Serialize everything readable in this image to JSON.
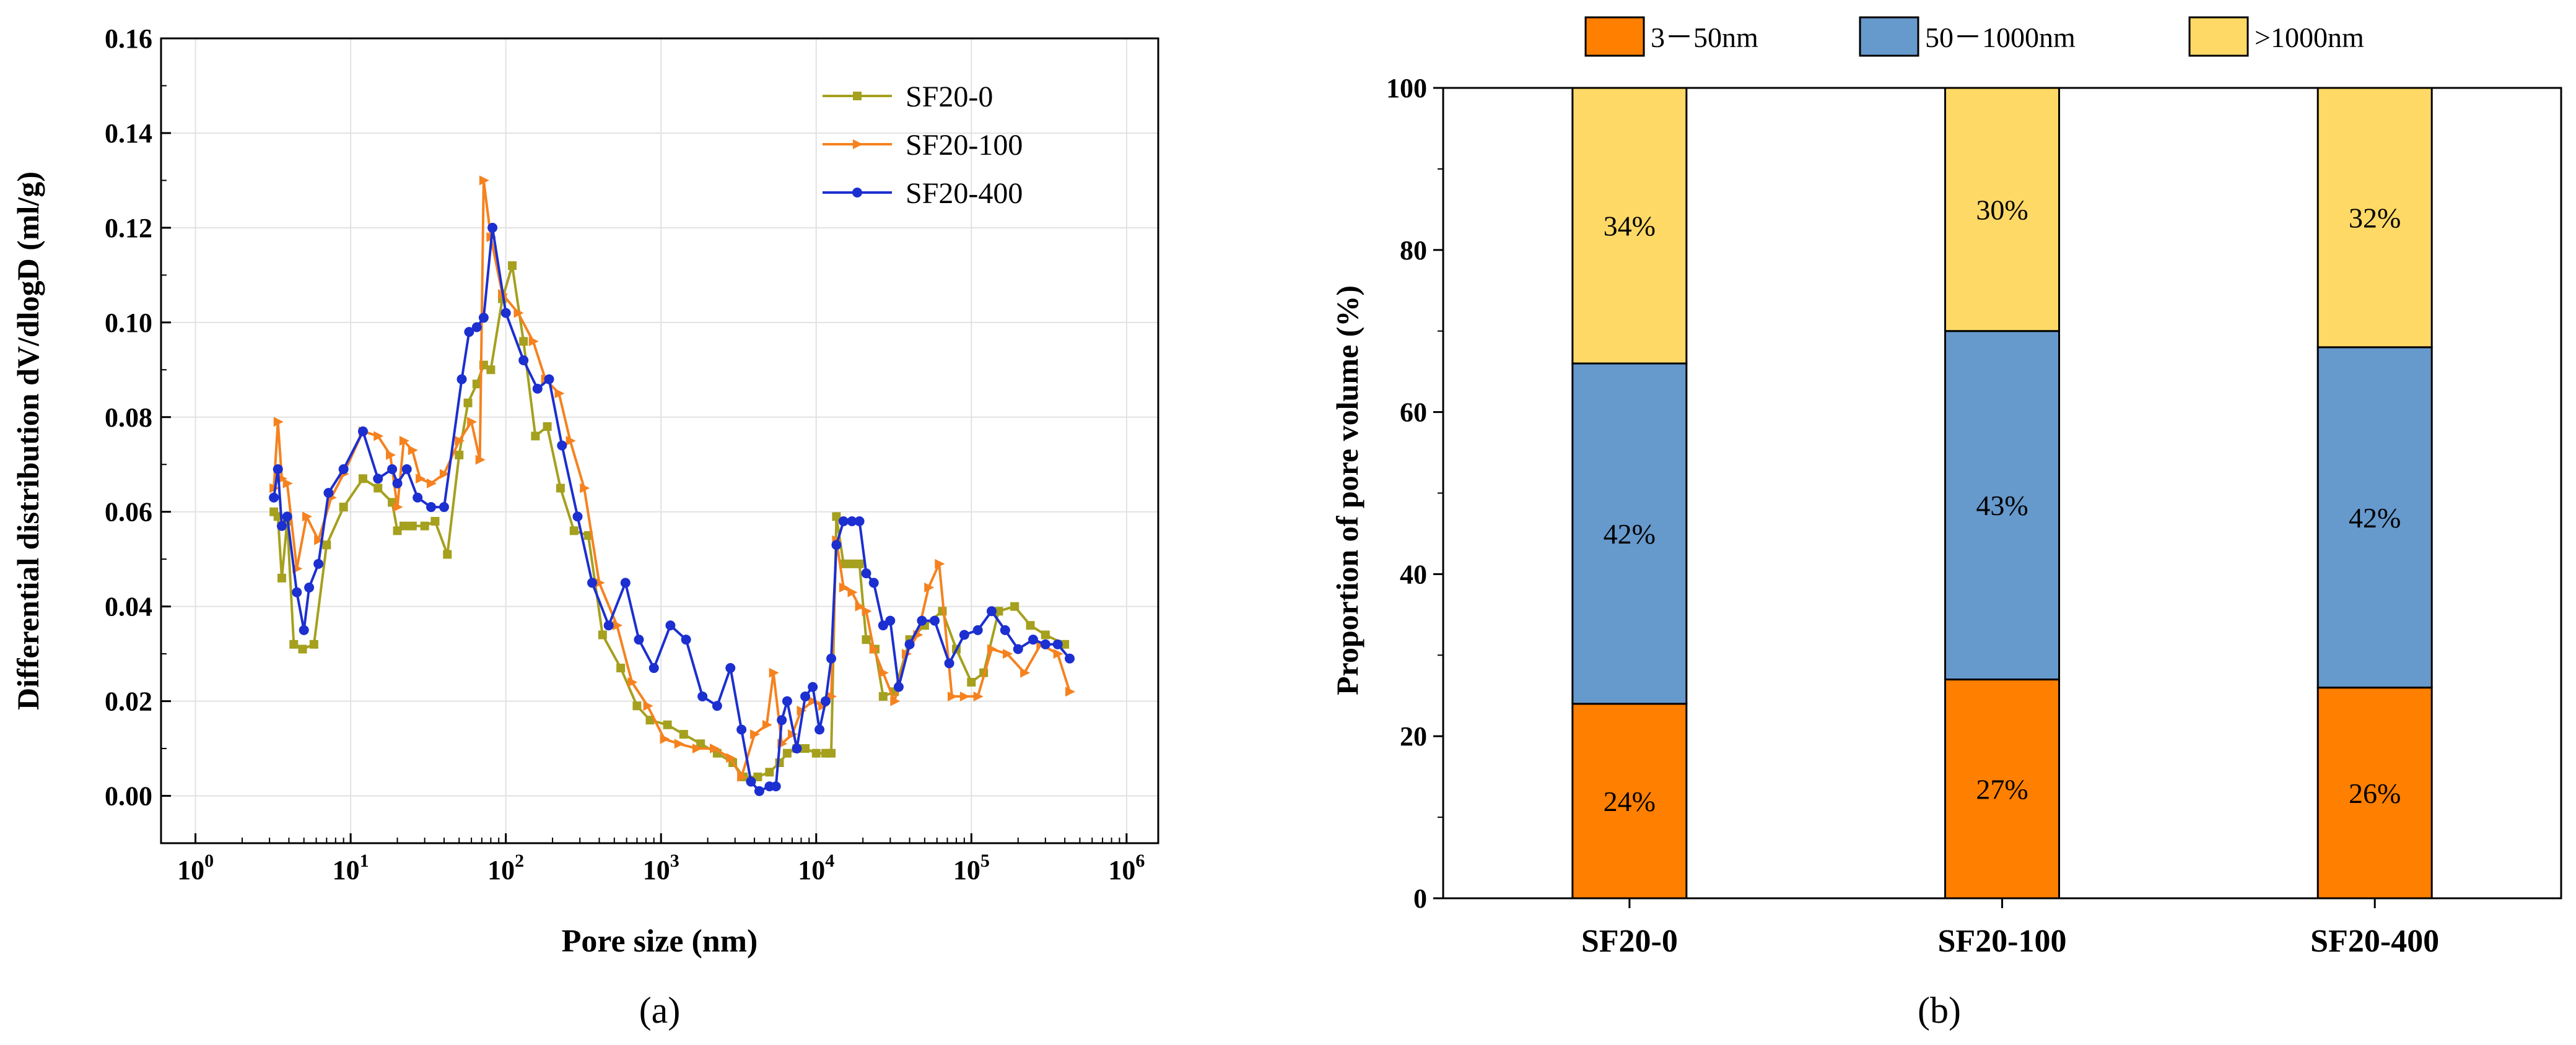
{
  "chart_data": [
    {
      "type": "line",
      "panel_label": "(a)",
      "xlabel": "Pore size (nm)",
      "ylabel": "Differential distribution dV/dlogD (ml/g)",
      "xscale": "log",
      "xlim": [
        0.6,
        1600000
      ],
      "ylim": [
        -0.01,
        0.16
      ],
      "yticks": [
        0.0,
        0.02,
        0.04,
        0.06,
        0.08,
        0.1,
        0.12,
        0.14,
        0.16
      ],
      "ytick_labels": [
        "0.00",
        "0.02",
        "0.04",
        "0.06",
        "0.08",
        "0.10",
        "0.12",
        "0.14",
        "0.16"
      ],
      "xticks": [
        {
          "base": "10",
          "exp": "0"
        },
        {
          "base": "10",
          "exp": "1"
        },
        {
          "base": "10",
          "exp": "2"
        },
        {
          "base": "10",
          "exp": "3"
        },
        {
          "base": "10",
          "exp": "4"
        },
        {
          "base": "10",
          "exp": "5"
        },
        {
          "base": "10",
          "exp": "6"
        }
      ],
      "grid": true,
      "legend_position": "top-right",
      "series": [
        {
          "name": "SF20-0",
          "color": "#a5a01e",
          "marker": "square",
          "points": [
            [
              3.2,
              0.06
            ],
            [
              3.4,
              0.059
            ],
            [
              3.6,
              0.046
            ],
            [
              3.9,
              0.058
            ],
            [
              4.3,
              0.032
            ],
            [
              4.9,
              0.031
            ],
            [
              5.8,
              0.032
            ],
            [
              7.0,
              0.053
            ],
            [
              9.0,
              0.061
            ],
            [
              12.0,
              0.067
            ],
            [
              15.0,
              0.065
            ],
            [
              18.5,
              0.062
            ],
            [
              20.0,
              0.056
            ],
            [
              22.0,
              0.057
            ],
            [
              25.0,
              0.057
            ],
            [
              30.0,
              0.057
            ],
            [
              35.0,
              0.058
            ],
            [
              42.0,
              0.051
            ],
            [
              50.0,
              0.072
            ],
            [
              57.0,
              0.083
            ],
            [
              65.0,
              0.087
            ],
            [
              72.0,
              0.091
            ],
            [
              80.0,
              0.09
            ],
            [
              95.0,
              0.105
            ],
            [
              110.0,
              0.112
            ],
            [
              130.0,
              0.096
            ],
            [
              155.0,
              0.076
            ],
            [
              185.0,
              0.078
            ],
            [
              225.0,
              0.065
            ],
            [
              275.0,
              0.056
            ],
            [
              340.0,
              0.055
            ],
            [
              420.0,
              0.034
            ],
            [
              550.0,
              0.027
            ],
            [
              700.0,
              0.019
            ],
            [
              850.0,
              0.016
            ],
            [
              1100.0,
              0.015
            ],
            [
              1400.0,
              0.013
            ],
            [
              1800.0,
              0.011
            ],
            [
              2300.0,
              0.009
            ],
            [
              2900.0,
              0.007
            ],
            [
              3400.0,
              0.004
            ],
            [
              4200.0,
              0.004
            ],
            [
              5000.0,
              0.005
            ],
            [
              5800.0,
              0.007
            ],
            [
              6500.0,
              0.009
            ],
            [
              7500.0,
              0.01
            ],
            [
              8500.0,
              0.01
            ],
            [
              10000.0,
              0.009
            ],
            [
              11500.0,
              0.009
            ],
            [
              12500.0,
              0.009
            ],
            [
              13500.0,
              0.059
            ],
            [
              15000.0,
              0.049
            ],
            [
              17000.0,
              0.049
            ],
            [
              19000.0,
              0.049
            ],
            [
              21000.0,
              0.033
            ],
            [
              24000.0,
              0.031
            ],
            [
              27000.0,
              0.021
            ],
            [
              32000.0,
              0.022
            ],
            [
              40000.0,
              0.033
            ],
            [
              50000.0,
              0.036
            ],
            [
              65000.0,
              0.039
            ],
            [
              80000.0,
              0.031
            ],
            [
              100000.0,
              0.024
            ],
            [
              120000.0,
              0.026
            ],
            [
              150000.0,
              0.039
            ],
            [
              190000.0,
              0.04
            ],
            [
              240000.0,
              0.036
            ],
            [
              300000.0,
              0.034
            ],
            [
              400000.0,
              0.032
            ]
          ]
        },
        {
          "name": "SF20-100",
          "color": "#f5821f",
          "marker": "triangle-right",
          "points": [
            [
              3.2,
              0.065
            ],
            [
              3.4,
              0.079
            ],
            [
              3.6,
              0.067
            ],
            [
              3.9,
              0.066
            ],
            [
              4.5,
              0.048
            ],
            [
              5.2,
              0.059
            ],
            [
              6.2,
              0.054
            ],
            [
              7.5,
              0.063
            ],
            [
              9.0,
              0.068
            ],
            [
              12.0,
              0.077
            ],
            [
              15.0,
              0.076
            ],
            [
              18.0,
              0.072
            ],
            [
              20.0,
              0.061
            ],
            [
              22.0,
              0.075
            ],
            [
              25.0,
              0.073
            ],
            [
              28.0,
              0.067
            ],
            [
              33.0,
              0.066
            ],
            [
              40.0,
              0.068
            ],
            [
              50.0,
              0.075
            ],
            [
              60.0,
              0.079
            ],
            [
              68.0,
              0.071
            ],
            [
              72.0,
              0.13
            ],
            [
              80.0,
              0.118
            ],
            [
              95.0,
              0.106
            ],
            [
              120.0,
              0.102
            ],
            [
              150.0,
              0.096
            ],
            [
              180.0,
              0.088
            ],
            [
              220.0,
              0.085
            ],
            [
              260.0,
              0.075
            ],
            [
              320.0,
              0.065
            ],
            [
              400.0,
              0.045
            ],
            [
              520.0,
              0.036
            ],
            [
              650.0,
              0.024
            ],
            [
              820.0,
              0.019
            ],
            [
              1050.0,
              0.012
            ],
            [
              1300.0,
              0.011
            ],
            [
              1700.0,
              0.01
            ],
            [
              2200.0,
              0.01
            ],
            [
              2800.0,
              0.008
            ],
            [
              3300.0,
              0.004
            ],
            [
              4000.0,
              0.013
            ],
            [
              4800.0,
              0.015
            ],
            [
              5300.0,
              0.026
            ],
            [
              6000.0,
              0.011
            ],
            [
              7000.0,
              0.013
            ],
            [
              8000.0,
              0.018
            ],
            [
              9500.0,
              0.02
            ],
            [
              11000.0,
              0.019
            ],
            [
              12500.0,
              0.021
            ],
            [
              13500.0,
              0.054
            ],
            [
              15000.0,
              0.044
            ],
            [
              17000.0,
              0.043
            ],
            [
              19000.0,
              0.04
            ],
            [
              21000.0,
              0.039
            ],
            [
              23500.0,
              0.031
            ],
            [
              27000.0,
              0.026
            ],
            [
              32000.0,
              0.02
            ],
            [
              38000.0,
              0.03
            ],
            [
              45000.0,
              0.034
            ],
            [
              53000.0,
              0.044
            ],
            [
              62000.0,
              0.049
            ],
            [
              75000.0,
              0.021
            ],
            [
              90000.0,
              0.021
            ],
            [
              110000.0,
              0.021
            ],
            [
              135000.0,
              0.031
            ],
            [
              170000.0,
              0.03
            ],
            [
              220000.0,
              0.026
            ],
            [
              280000.0,
              0.032
            ],
            [
              360000.0,
              0.03
            ],
            [
              430000.0,
              0.022
            ]
          ]
        },
        {
          "name": "SF20-400",
          "color": "#1c2fd0",
          "marker": "circle",
          "points": [
            [
              3.2,
              0.063
            ],
            [
              3.4,
              0.069
            ],
            [
              3.6,
              0.057
            ],
            [
              3.9,
              0.059
            ],
            [
              4.5,
              0.043
            ],
            [
              5.0,
              0.035
            ],
            [
              5.4,
              0.044
            ],
            [
              6.2,
              0.049
            ],
            [
              7.2,
              0.064
            ],
            [
              9.0,
              0.069
            ],
            [
              12.0,
              0.077
            ],
            [
              15.0,
              0.067
            ],
            [
              18.5,
              0.069
            ],
            [
              20.0,
              0.066
            ],
            [
              23.0,
              0.069
            ],
            [
              27.0,
              0.063
            ],
            [
              33.0,
              0.061
            ],
            [
              40.0,
              0.061
            ],
            [
              52.0,
              0.088
            ],
            [
              58.0,
              0.098
            ],
            [
              65.0,
              0.099
            ],
            [
              72.0,
              0.101
            ],
            [
              82.0,
              0.12
            ],
            [
              100.0,
              0.102
            ],
            [
              130.0,
              0.092
            ],
            [
              160.0,
              0.086
            ],
            [
              190.0,
              0.088
            ],
            [
              230.0,
              0.074
            ],
            [
              290.0,
              0.059
            ],
            [
              360.0,
              0.045
            ],
            [
              460.0,
              0.036
            ],
            [
              590.0,
              0.045
            ],
            [
              720.0,
              0.033
            ],
            [
              900.0,
              0.027
            ],
            [
              1150.0,
              0.036
            ],
            [
              1450.0,
              0.033
            ],
            [
              1850.0,
              0.021
            ],
            [
              2300.0,
              0.019
            ],
            [
              2800.0,
              0.027
            ],
            [
              3300.0,
              0.014
            ],
            [
              3800.0,
              0.003
            ],
            [
              4300.0,
              0.001
            ],
            [
              5000.0,
              0.002
            ],
            [
              5500.0,
              0.002
            ],
            [
              6000.0,
              0.016
            ],
            [
              6500.0,
              0.02
            ],
            [
              7500.0,
              0.01
            ],
            [
              8500.0,
              0.021
            ],
            [
              9500.0,
              0.023
            ],
            [
              10500.0,
              0.014
            ],
            [
              11500.0,
              0.02
            ],
            [
              12500.0,
              0.029
            ],
            [
              13500.0,
              0.053
            ],
            [
              15000.0,
              0.058
            ],
            [
              17000.0,
              0.058
            ],
            [
              19000.0,
              0.058
            ],
            [
              21000.0,
              0.047
            ],
            [
              23500.0,
              0.045
            ],
            [
              27000.0,
              0.036
            ],
            [
              30000.0,
              0.037
            ],
            [
              34000.0,
              0.023
            ],
            [
              40000.0,
              0.032
            ],
            [
              48000.0,
              0.037
            ],
            [
              58000.0,
              0.037
            ],
            [
              72000.0,
              0.028
            ],
            [
              90000.0,
              0.034
            ],
            [
              110000.0,
              0.035
            ],
            [
              135000.0,
              0.039
            ],
            [
              165000.0,
              0.035
            ],
            [
              200000.0,
              0.031
            ],
            [
              250000.0,
              0.033
            ],
            [
              300000.0,
              0.032
            ],
            [
              360000.0,
              0.032
            ],
            [
              430000.0,
              0.029
            ]
          ]
        }
      ]
    },
    {
      "type": "bar",
      "stacked": true,
      "panel_label": "(b)",
      "xlabel": "",
      "ylabel": "Proportion of pore volume (%)",
      "ylim": [
        0,
        100
      ],
      "yticks": [
        0,
        20,
        40,
        60,
        80,
        100
      ],
      "ytick_labels": [
        "0",
        "20",
        "40",
        "60",
        "80",
        "100"
      ],
      "categories": [
        "SF20-0",
        "SF20-100",
        "SF20-400"
      ],
      "legend_position": "top",
      "series": [
        {
          "name": "3－50nm",
          "color": "#ff7f00",
          "values": [
            24,
            27,
            26
          ],
          "labels": [
            "24%",
            "27%",
            "26%"
          ]
        },
        {
          "name": "50－1000nm",
          "color": "#6699cc",
          "values": [
            42,
            43,
            42
          ],
          "labels": [
            "42%",
            "43%",
            "42%"
          ]
        },
        {
          "name": ">1000nm",
          "color": "#ffd966",
          "values": [
            34,
            30,
            32
          ],
          "labels": [
            "34%",
            "30%",
            "32%"
          ]
        }
      ]
    }
  ]
}
